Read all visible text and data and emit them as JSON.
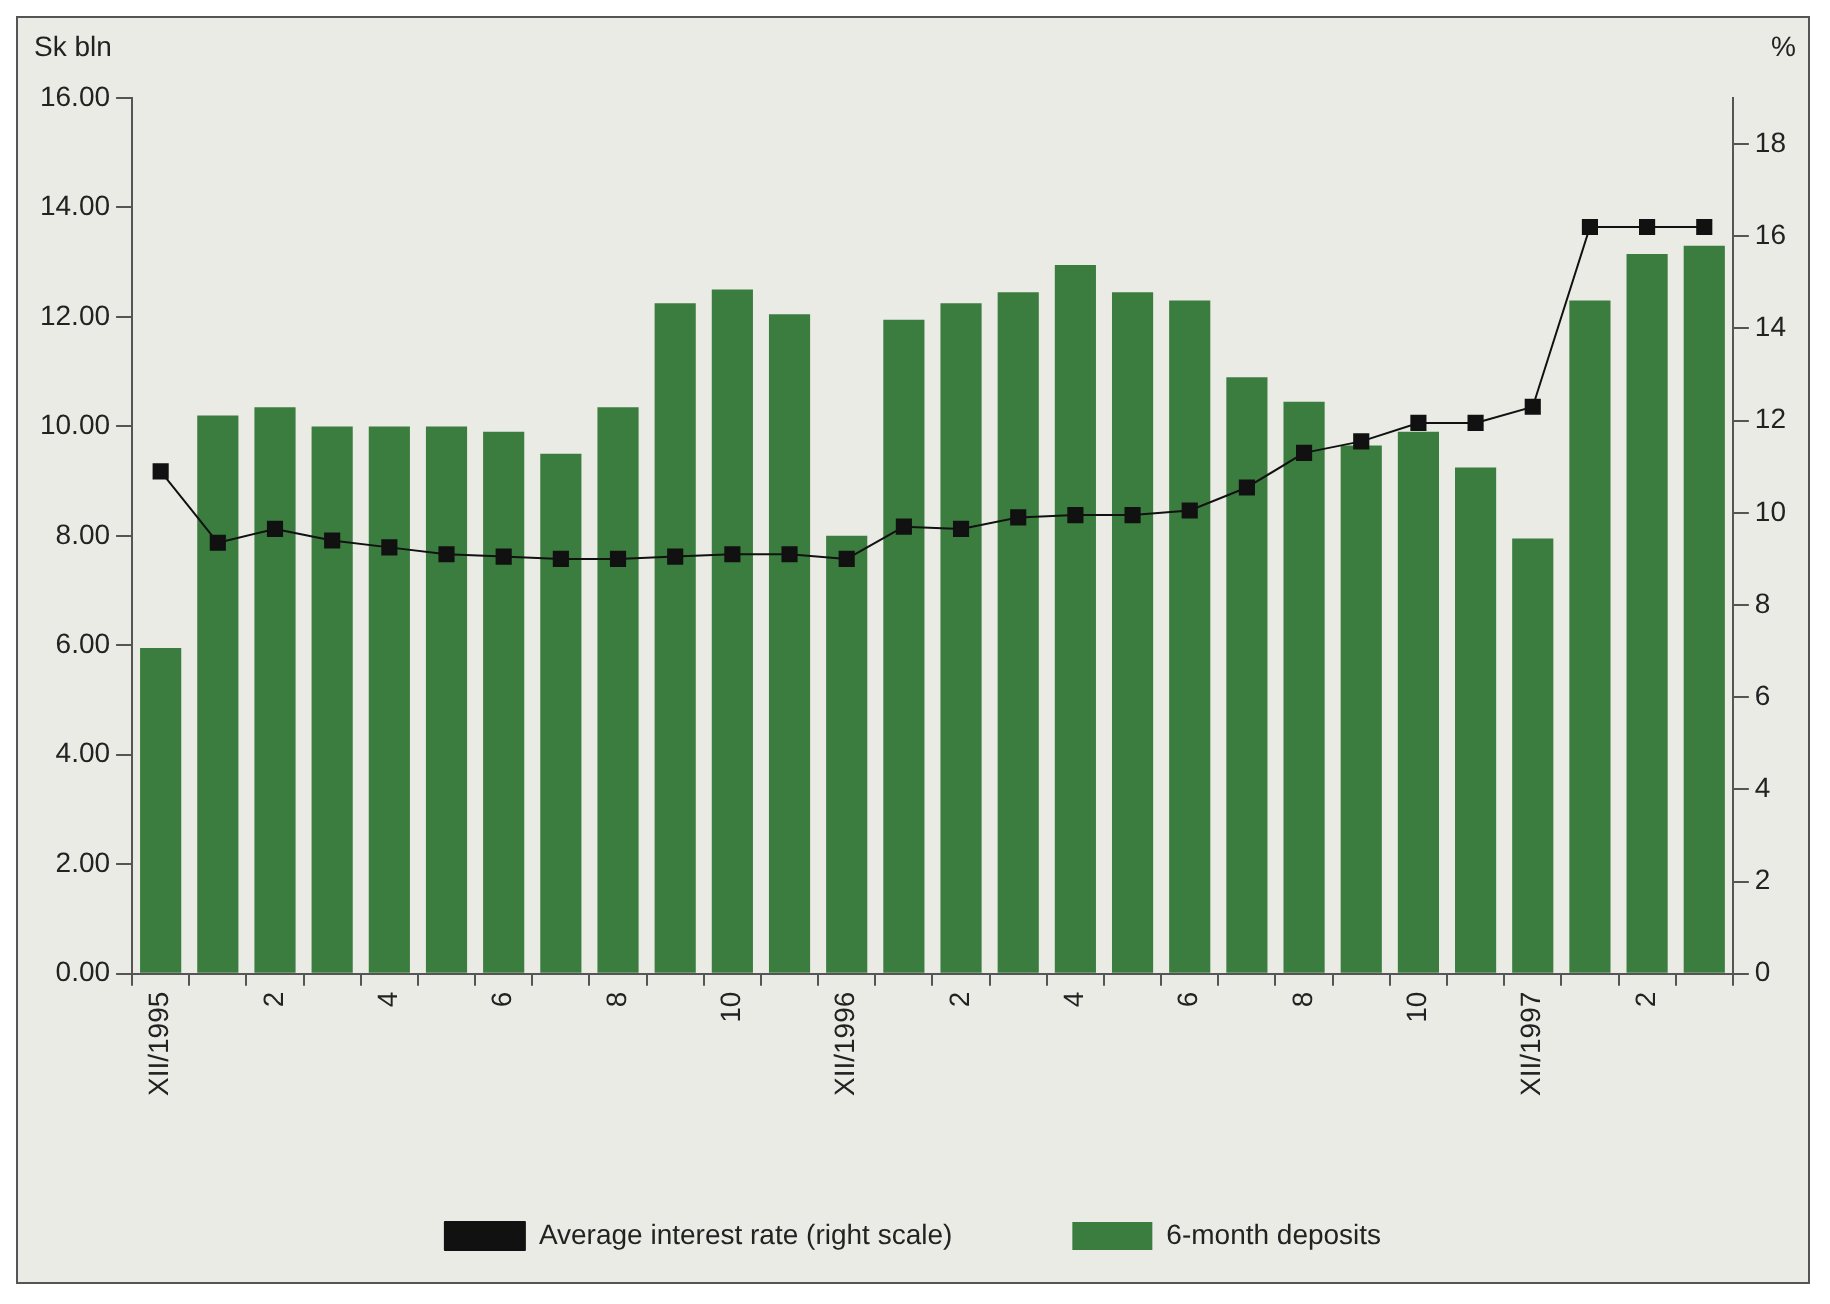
{
  "chart_data": {
    "type": "bar",
    "ylabel": "Sk bln",
    "y2label": "%",
    "categories": [
      "XII/1995",
      null,
      "2",
      null,
      "4",
      null,
      "6",
      null,
      "8",
      null,
      "10",
      null,
      "XII/1996",
      null,
      "2",
      null,
      "4",
      null,
      "6",
      null,
      "8",
      null,
      "10",
      null,
      "XII/1997",
      null,
      "2",
      null
    ],
    "series": [
      {
        "name": "6-month deposits",
        "color": "#3a7d3e",
        "values": [
          5.95,
          10.2,
          10.35,
          10.0,
          10.0,
          10.0,
          9.9,
          9.5,
          10.35,
          12.25,
          12.5,
          12.05,
          8.0,
          11.95,
          12.25,
          12.45,
          12.95,
          12.45,
          12.3,
          10.9,
          10.45,
          9.65,
          9.9,
          9.25,
          7.95,
          12.3,
          13.15,
          13.3
        ]
      },
      {
        "name": "Average interest rate (right scale)",
        "type": "line",
        "axis": "y2",
        "color": "#111111",
        "marker": "square",
        "line_style": "solid",
        "values": [
          10.9,
          9.35,
          9.65,
          9.4,
          9.25,
          9.1,
          9.05,
          9.0,
          9.0,
          9.05,
          9.1,
          9.1,
          9.0,
          9.7,
          9.65,
          9.9,
          9.95,
          9.95,
          10.05,
          10.55,
          11.3,
          11.55,
          11.95,
          11.95,
          12.3,
          16.2,
          16.2,
          16.2
        ]
      }
    ],
    "ylim": [
      0,
      16
    ],
    "yticks": [
      {
        "value": 0,
        "label": "0.00"
      },
      {
        "value": 2,
        "label": "2.00"
      },
      {
        "value": 4,
        "label": "4.00"
      },
      {
        "value": 6,
        "label": "6.00"
      },
      {
        "value": 8,
        "label": "8.00"
      },
      {
        "value": 10,
        "label": "10.00"
      },
      {
        "value": 12,
        "label": "12.00"
      },
      {
        "value": 14,
        "label": "14.00"
      },
      {
        "value": 16,
        "label": "16.00"
      }
    ],
    "y2lim": [
      0,
      19
    ],
    "y2ticks": [
      0,
      2,
      4,
      6,
      8,
      10,
      12,
      14,
      16,
      18
    ],
    "grid": false,
    "legend": "bottom"
  }
}
